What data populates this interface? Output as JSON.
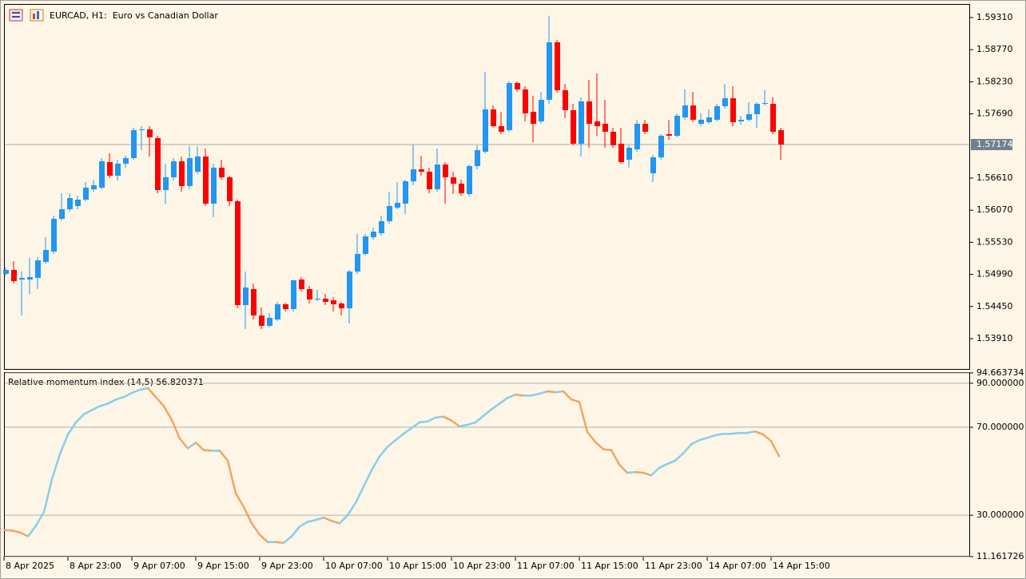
{
  "chart_data": [
    {
      "type": "candlestick",
      "title": "EURCAD, H1:  Euro vs Canadian Dollar",
      "up_color": "#2196f3",
      "down_color": "#ff0000",
      "ylim": [
        1.53386,
        1.59538
      ],
      "yticks": [
        {
          "value": 1.5931,
          "label": "1.59310"
        },
        {
          "value": 1.5877,
          "label": "1.58770"
        },
        {
          "value": 1.5823,
          "label": "1.58230"
        },
        {
          "value": 1.5769,
          "label": "1.57690"
        },
        {
          "value": 1.5661,
          "label": "1.56610"
        },
        {
          "value": 1.5607,
          "label": "1.56070"
        },
        {
          "value": 1.5553,
          "label": "1.55530"
        },
        {
          "value": 1.5499,
          "label": "1.54990"
        },
        {
          "value": 1.5445,
          "label": "1.54450"
        },
        {
          "value": 1.5391,
          "label": "1.53910"
        }
      ],
      "xticks": [
        {
          "value": 0,
          "label": "8 Apr 2025"
        },
        {
          "value": 8,
          "label": "8 Apr 23:00"
        },
        {
          "value": 16,
          "label": "9 Apr 07:00"
        },
        {
          "value": 24,
          "label": "9 Apr 15:00"
        },
        {
          "value": 32,
          "label": "9 Apr 23:00"
        },
        {
          "value": 40,
          "label": "10 Apr 07:00"
        },
        {
          "value": 48,
          "label": "10 Apr 15:00"
        },
        {
          "value": 56,
          "label": "10 Apr 23:00"
        },
        {
          "value": 64,
          "label": "11 Apr 07:00"
        },
        {
          "value": 72,
          "label": "11 Apr 15:00"
        },
        {
          "value": 80,
          "label": "11 Apr 23:00"
        },
        {
          "value": 88,
          "label": "14 Apr 07:00"
        },
        {
          "value": 96,
          "label": "14 Apr 15:00"
        }
      ],
      "grid": false,
      "price_line": true,
      "open": [
        1.54998,
        1.55065,
        1.54904,
        1.54904,
        1.54931,
        1.552,
        1.55374,
        1.55925,
        1.56086,
        1.5614,
        1.56247,
        1.56422,
        1.56449,
        1.56879,
        1.5665,
        1.56852,
        1.56946,
        1.57416,
        1.57429,
        1.57282,
        1.56409,
        1.56623,
        1.56892,
        1.56476,
        1.56717,
        1.56973,
        1.5618,
        1.56785,
        1.56623,
        1.5622,
        1.54474,
        1.54743,
        1.54299,
        1.54125,
        1.54232,
        1.54488,
        1.54407,
        1.54904,
        1.54743,
        1.54568,
        1.54582,
        1.54555,
        1.54501,
        1.5442,
        1.55038,
        1.55334,
        1.55616,
        1.55683,
        1.55885,
        1.56113,
        1.5618,
        1.56556,
        1.56758,
        1.56717,
        1.56422,
        1.56838,
        1.56623,
        1.56516,
        1.56341,
        1.56812,
        1.57053,
        1.57765,
        1.57483,
        1.57416,
        1.58209,
        1.58101,
        1.57725,
        1.57564,
        1.57926,
        1.58894,
        1.58088,
        1.57752,
        1.57188,
        1.579,
        1.57564,
        1.57523,
        1.57389,
        1.57188,
        1.56919,
        1.57094,
        1.57523,
        1.56691,
        1.56959,
        1.57349,
        1.57322,
        1.57631,
        1.57832,
        1.57523,
        1.5755,
        1.57591,
        1.57819,
        1.57953,
        1.57564,
        1.57591,
        1.57685,
        1.57859,
        1.57859,
        1.57416
      ],
      "high": [
        1.55105,
        1.55213,
        1.55038,
        1.55267,
        1.5528,
        1.55616,
        1.55979,
        1.56355,
        1.56355,
        1.56314,
        1.56543,
        1.56583,
        1.56946,
        1.57026,
        1.56919,
        1.56986,
        1.57456,
        1.57483,
        1.57483,
        1.57322,
        1.56852,
        1.56946,
        1.56973,
        1.57147,
        1.57147,
        1.57107,
        1.56852,
        1.56919,
        1.5665,
        1.56247,
        1.55038,
        1.54837,
        1.54434,
        1.5434,
        1.54528,
        1.54514,
        1.54904,
        1.54944,
        1.54797,
        1.54729,
        1.54662,
        1.54608,
        1.54528,
        1.55065,
        1.5567,
        1.5567,
        1.55777,
        1.55979,
        1.56382,
        1.56543,
        1.56583,
        1.57174,
        1.56986,
        1.56785,
        1.57107,
        1.56879,
        1.56717,
        1.56583,
        1.56838,
        1.57161,
        1.58397,
        1.57832,
        1.57725,
        1.58235,
        1.58235,
        1.58155,
        1.57994,
        1.58061,
        1.59337,
        1.58934,
        1.58195,
        1.57859,
        1.57967,
        1.58262,
        1.5837,
        1.57926,
        1.57456,
        1.57456,
        1.57161,
        1.57591,
        1.57591,
        1.57,
        1.57349,
        1.57591,
        1.57698,
        1.58101,
        1.58061,
        1.57698,
        1.57765,
        1.57859,
        1.58195,
        1.58155,
        1.57658,
        1.57886,
        1.57886,
        1.58088,
        1.57967,
        1.57456
      ],
      "low": [
        1.54971,
        1.54837,
        1.54299,
        1.54662,
        1.54743,
        1.55173,
        1.55334,
        1.55898,
        1.56046,
        1.56086,
        1.5622,
        1.56382,
        1.56422,
        1.5661,
        1.5657,
        1.56785,
        1.56919,
        1.5708,
        1.56973,
        1.56355,
        1.5618,
        1.5657,
        1.56382,
        1.56422,
        1.56677,
        1.5614,
        1.55952,
        1.56583,
        1.5614,
        1.5442,
        1.54071,
        1.54232,
        1.54071,
        1.54098,
        1.54205,
        1.54367,
        1.54367,
        1.54702,
        1.54501,
        1.54541,
        1.54474,
        1.54367,
        1.54299,
        1.54165,
        1.54998,
        1.55307,
        1.55576,
        1.55643,
        1.55844,
        1.56086,
        1.56005,
        1.56489,
        1.5665,
        1.56355,
        1.56382,
        1.5618,
        1.56341,
        1.56314,
        1.56301,
        1.56758,
        1.57026,
        1.57456,
        1.57349,
        1.57389,
        1.58061,
        1.57564,
        1.57215,
        1.57523,
        1.57859,
        1.58047,
        1.57617,
        1.57161,
        1.56973,
        1.5712,
        1.57322,
        1.5712,
        1.5712,
        1.56852,
        1.56785,
        1.57053,
        1.57349,
        1.56543,
        1.56919,
        1.57255,
        1.57295,
        1.57591,
        1.5755,
        1.57483,
        1.57523,
        1.57564,
        1.57779,
        1.57483,
        1.5751,
        1.57564,
        1.57456,
        1.57832,
        1.57349,
        1.56919
      ],
      "close": [
        1.55065,
        1.54877,
        1.54931,
        1.54944,
        1.55226,
        1.55401,
        1.55925,
        1.56086,
        1.56274,
        1.56247,
        1.56449,
        1.56489,
        1.56892,
        1.5665,
        1.56852,
        1.56946,
        1.57416,
        1.57429,
        1.57295,
        1.56409,
        1.56623,
        1.56892,
        1.56476,
        1.56946,
        1.56973,
        1.5618,
        1.56785,
        1.56623,
        1.5622,
        1.54474,
        1.5477,
        1.54299,
        1.54125,
        1.54259,
        1.54488,
        1.54407,
        1.5489,
        1.54743,
        1.54568,
        1.54582,
        1.54528,
        1.54488,
        1.5442,
        1.55038,
        1.55334,
        1.55629,
        1.5571,
        1.55885,
        1.5614,
        1.56194,
        1.56556,
        1.56758,
        1.56717,
        1.56422,
        1.56838,
        1.56623,
        1.56516,
        1.56355,
        1.56812,
        1.5708,
        1.57765,
        1.57483,
        1.57389,
        1.58209,
        1.58101,
        1.57698,
        1.57523,
        1.57926,
        1.58894,
        1.58088,
        1.57752,
        1.57188,
        1.579,
        1.57523,
        1.57483,
        1.57389,
        1.57161,
        1.56879,
        1.5712,
        1.57523,
        1.57389,
        1.56959,
        1.57322,
        1.57322,
        1.57658,
        1.57832,
        1.57591,
        1.57591,
        1.57631,
        1.57819,
        1.57953,
        1.5755,
        1.57591,
        1.57685,
        1.57859,
        1.57873,
        1.57389,
        1.57174
      ]
    },
    {
      "type": "line",
      "title": "Relative momentum index (14,5) 56.820371",
      "up_color": "#87ceeb",
      "down_color": "#f4a460",
      "ylim": [
        11.161726,
        94.663734
      ],
      "yticks": [
        94.663734,
        {
          "value": 90,
          "label": "90.000000"
        },
        {
          "value": 70,
          "label": "70.000000"
        },
        {
          "value": 30,
          "label": "30.000000"
        },
        11.161726
      ],
      "grid": true,
      "values": [
        23.3,
        23.0,
        22.2,
        20.4,
        25.2,
        31.5,
        46.3,
        57.8,
        66.7,
        72.2,
        75.9,
        77.8,
        79.6,
        80.7,
        82.6,
        83.7,
        85.6,
        87.0,
        87.8,
        83.7,
        79.6,
        73.3,
        64.8,
        60.4,
        63.0,
        59.6,
        59.3,
        59.3,
        54.8,
        40.0,
        33.7,
        26.3,
        21.1,
        17.8,
        17.8,
        17.4,
        20.4,
        24.8,
        27.0,
        27.8,
        28.9,
        27.4,
        26.3,
        30.0,
        35.6,
        43.0,
        50.4,
        56.7,
        61.1,
        64.1,
        67.0,
        69.6,
        72.2,
        72.6,
        74.4,
        74.8,
        73.0,
        70.4,
        71.1,
        72.2,
        75.2,
        78.1,
        80.7,
        83.3,
        84.8,
        84.4,
        84.4,
        85.2,
        86.3,
        85.9,
        86.3,
        82.6,
        81.5,
        67.8,
        63.3,
        60.0,
        59.6,
        53.0,
        49.3,
        49.6,
        49.3,
        48.1,
        51.5,
        53.3,
        54.8,
        58.1,
        62.2,
        64.1,
        65.2,
        66.3,
        67.0,
        67.0,
        67.4,
        67.4,
        68.1,
        66.7,
        63.7,
        56.820371
      ]
    }
  ]
}
